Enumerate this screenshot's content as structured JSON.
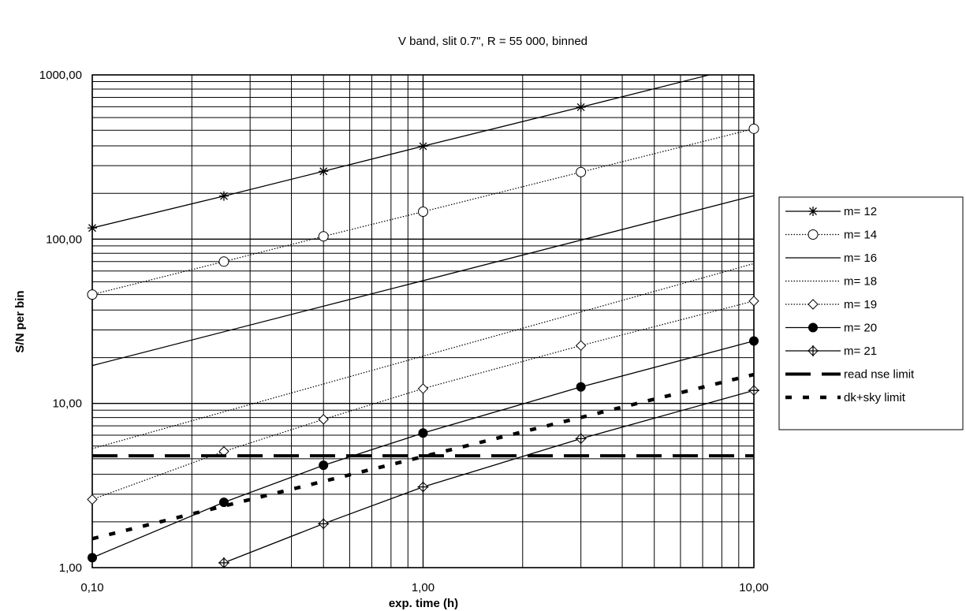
{
  "chart_data": {
    "type": "line",
    "title": "V band, slit 0.7\", R = 55 000, binned",
    "xlabel": "exp. time (h)",
    "ylabel": "S/N per bin",
    "x_scale": "log",
    "y_scale": "log",
    "xlim": [
      0.1,
      10
    ],
    "ylim": [
      1,
      1000
    ],
    "x_ticks": [
      {
        "value": 0.1,
        "label": "0,10"
      },
      {
        "value": 1,
        "label": "1,00"
      },
      {
        "value": 10,
        "label": "10,00"
      }
    ],
    "y_ticks": [
      {
        "value": 1,
        "label": "1,00"
      },
      {
        "value": 10,
        "label": "10,00"
      },
      {
        "value": 100,
        "label": "100,00"
      },
      {
        "value": 1000,
        "label": "1000,00"
      }
    ],
    "grid": true,
    "legend_position": "right",
    "series": [
      {
        "name": "m= 12",
        "style": "solid",
        "marker": "star",
        "x": [
          0.1,
          0.25,
          0.5,
          1,
          3,
          10
        ],
        "y": [
          117,
          183,
          259,
          368,
          636,
          1170
        ]
      },
      {
        "name": "m= 14",
        "style": "dotted",
        "marker": "open-circle",
        "x": [
          0.1,
          0.25,
          0.5,
          1,
          3,
          10
        ],
        "y": [
          46,
          73,
          104,
          147,
          256,
          470
        ]
      },
      {
        "name": "m= 16",
        "style": "solid",
        "marker": "none",
        "x": [
          0.1,
          10
        ],
        "y": [
          17,
          184
        ]
      },
      {
        "name": "m= 18",
        "style": "dotted",
        "marker": "none",
        "x": [
          0.1,
          10
        ],
        "y": [
          5.3,
          71
        ]
      },
      {
        "name": "m= 19",
        "style": "dotted",
        "marker": "open-diamond",
        "x": [
          0.1,
          0.25,
          0.5,
          1,
          3,
          10
        ],
        "y": [
          2.6,
          5.1,
          8,
          12.3,
          22.5,
          42
        ]
      },
      {
        "name": "m= 20",
        "style": "solid",
        "marker": "filled-circle",
        "x": [
          0.1,
          0.25,
          0.5,
          1,
          3,
          10
        ],
        "y": [
          1.15,
          2.5,
          4.2,
          6.6,
          12.6,
          24
        ]
      },
      {
        "name": "m= 21",
        "style": "solid",
        "marker": "diamond-cross",
        "x": [
          0.25,
          0.5,
          1,
          3,
          10
        ],
        "y": [
          1.07,
          1.85,
          3.1,
          6.1,
          12
        ]
      },
      {
        "name": "read nse limit",
        "style": "long-dash",
        "marker": "none",
        "x": [
          0.1,
          10
        ],
        "y": [
          4.8,
          4.8
        ]
      },
      {
        "name": "dk+sky limit",
        "style": "short-dash",
        "marker": "none",
        "x": [
          0.1,
          10
        ],
        "y": [
          1.5,
          15
        ]
      }
    ]
  }
}
